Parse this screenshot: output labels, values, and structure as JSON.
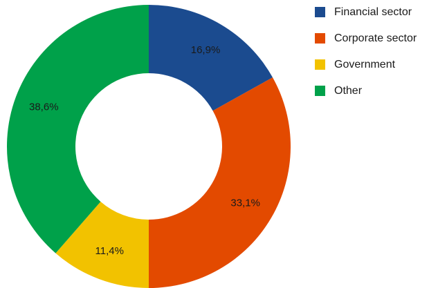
{
  "chart_data": {
    "type": "pie",
    "donut": true,
    "categories": [
      "Financial sector",
      "Corporate sector",
      "Government",
      "Other"
    ],
    "values": [
      16.9,
      33.1,
      11.4,
      38.6
    ],
    "value_labels": [
      "16,9%",
      "33,1%",
      "11,4%",
      "38,6%"
    ],
    "colors": [
      "#1b4b8f",
      "#e34a00",
      "#f2c200",
      "#00a14a"
    ],
    "legend_position": "top-right",
    "start": "top",
    "direction": "clockwise"
  }
}
